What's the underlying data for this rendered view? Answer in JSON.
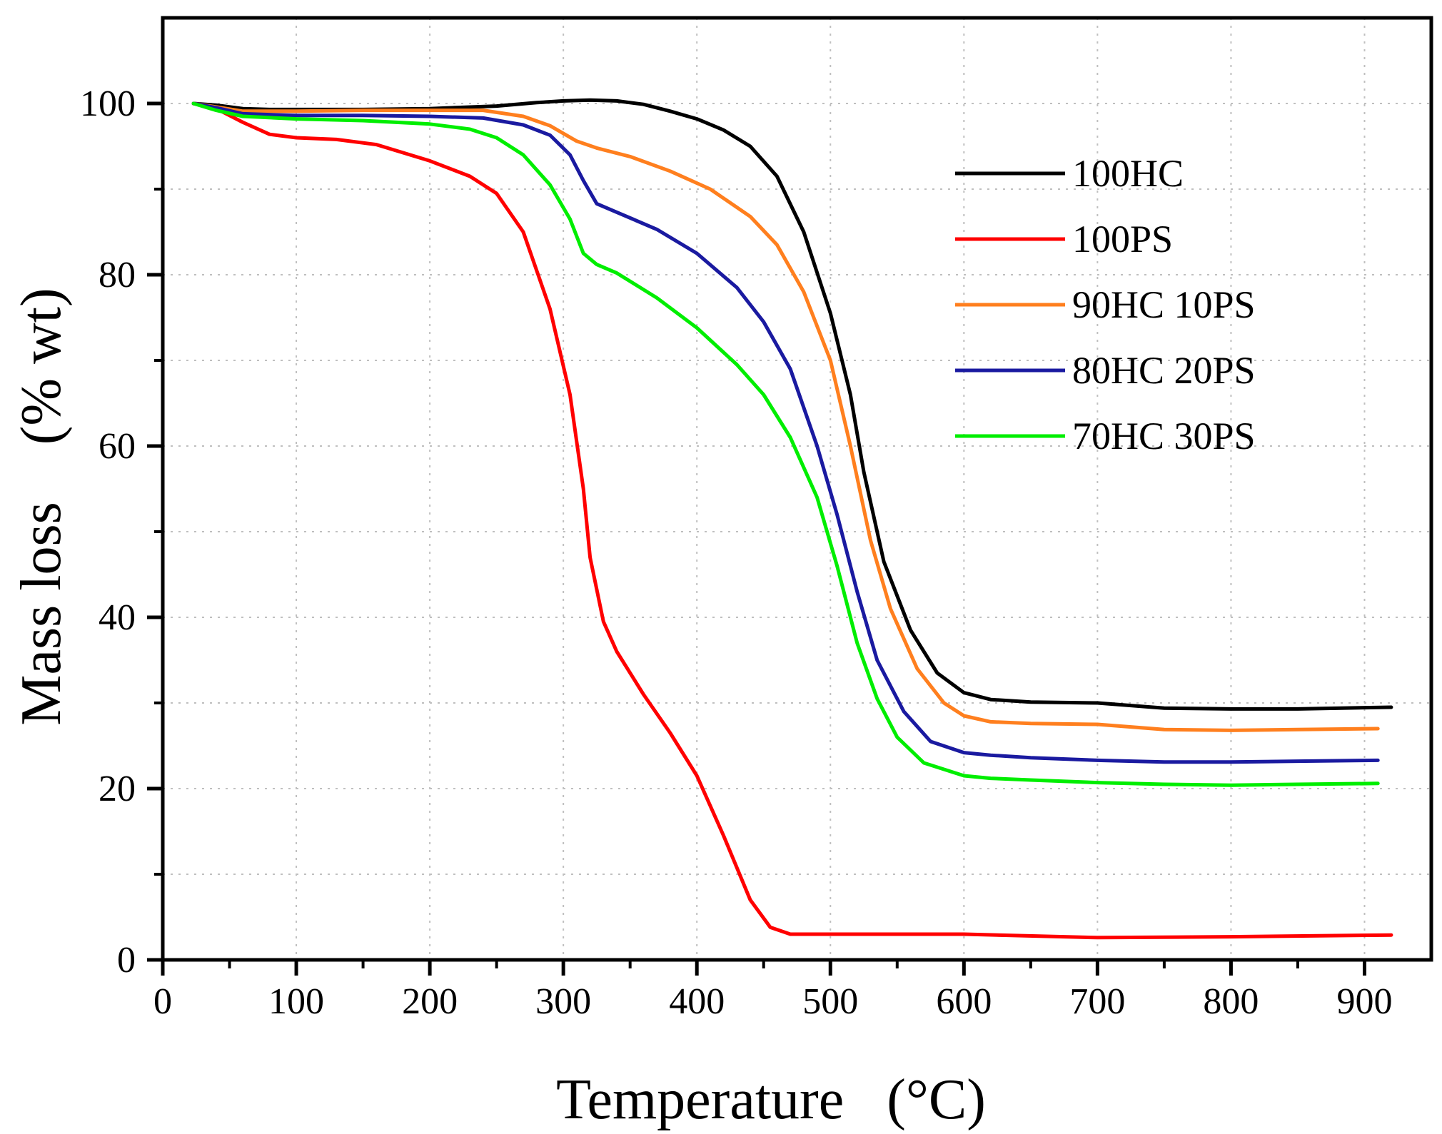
{
  "chart_data": {
    "type": "line",
    "title": "",
    "xlabel": "Temperature   (°C)",
    "ylabel": "Mass loss    (% wt)",
    "xlim": [
      0,
      950
    ],
    "ylim": [
      0,
      110
    ],
    "xticks": [
      0,
      100,
      200,
      300,
      400,
      500,
      600,
      700,
      800,
      900
    ],
    "yticks": [
      0,
      20,
      40,
      60,
      80,
      100
    ],
    "grid": true,
    "legend_position": "top-right",
    "series": [
      {
        "name": "100HC",
        "color": "#000000",
        "points": [
          [
            23,
            100
          ],
          [
            40,
            99.8
          ],
          [
            60,
            99.4
          ],
          [
            80,
            99.3
          ],
          [
            100,
            99.3
          ],
          [
            150,
            99.3
          ],
          [
            200,
            99.4
          ],
          [
            250,
            99.7
          ],
          [
            280,
            100.1
          ],
          [
            300,
            100.3
          ],
          [
            320,
            100.4
          ],
          [
            340,
            100.3
          ],
          [
            360,
            99.9
          ],
          [
            380,
            99.1
          ],
          [
            400,
            98.2
          ],
          [
            420,
            96.9
          ],
          [
            440,
            95
          ],
          [
            460,
            91.5
          ],
          [
            480,
            85
          ],
          [
            500,
            75.5
          ],
          [
            515,
            66
          ],
          [
            525,
            57
          ],
          [
            540,
            46.5
          ],
          [
            560,
            38.5
          ],
          [
            580,
            33.5
          ],
          [
            600,
            31.2
          ],
          [
            620,
            30.4
          ],
          [
            650,
            30.1
          ],
          [
            700,
            30
          ],
          [
            750,
            29.4
          ],
          [
            800,
            29.3
          ],
          [
            850,
            29.3
          ],
          [
            920,
            29.5
          ]
        ]
      },
      {
        "name": "100PS",
        "color": "#ff0000",
        "points": [
          [
            23,
            100
          ],
          [
            40,
            99.4
          ],
          [
            60,
            97.8
          ],
          [
            80,
            96.4
          ],
          [
            100,
            96
          ],
          [
            130,
            95.8
          ],
          [
            160,
            95.2
          ],
          [
            200,
            93.3
          ],
          [
            230,
            91.5
          ],
          [
            250,
            89.5
          ],
          [
            270,
            85
          ],
          [
            290,
            76
          ],
          [
            305,
            66
          ],
          [
            315,
            55
          ],
          [
            320,
            47
          ],
          [
            330,
            39.5
          ],
          [
            340,
            36
          ],
          [
            360,
            31
          ],
          [
            380,
            26.5
          ],
          [
            400,
            21.5
          ],
          [
            420,
            14.5
          ],
          [
            440,
            7
          ],
          [
            455,
            3.8
          ],
          [
            470,
            3
          ],
          [
            500,
            3
          ],
          [
            550,
            3
          ],
          [
            600,
            3
          ],
          [
            700,
            2.6
          ],
          [
            800,
            2.7
          ],
          [
            920,
            2.9
          ]
        ]
      },
      {
        "name": "90HC 10PS",
        "color": "#ff7f1e",
        "points": [
          [
            23,
            100
          ],
          [
            40,
            99.6
          ],
          [
            60,
            99.1
          ],
          [
            100,
            99.1
          ],
          [
            150,
            99.2
          ],
          [
            200,
            99.2
          ],
          [
            240,
            99.2
          ],
          [
            270,
            98.5
          ],
          [
            290,
            97.4
          ],
          [
            310,
            95.6
          ],
          [
            325,
            94.8
          ],
          [
            350,
            93.8
          ],
          [
            380,
            92.1
          ],
          [
            410,
            90
          ],
          [
            440,
            86.8
          ],
          [
            460,
            83.5
          ],
          [
            480,
            78
          ],
          [
            500,
            70
          ],
          [
            515,
            60
          ],
          [
            530,
            49
          ],
          [
            545,
            41
          ],
          [
            565,
            34
          ],
          [
            585,
            30
          ],
          [
            600,
            28.5
          ],
          [
            620,
            27.8
          ],
          [
            650,
            27.6
          ],
          [
            700,
            27.5
          ],
          [
            750,
            26.9
          ],
          [
            800,
            26.8
          ],
          [
            850,
            26.9
          ],
          [
            910,
            27
          ]
        ]
      },
      {
        "name": "80HC 20PS",
        "color": "#1a1aa0",
        "points": [
          [
            23,
            100
          ],
          [
            40,
            99.5
          ],
          [
            60,
            98.8
          ],
          [
            100,
            98.6
          ],
          [
            150,
            98.6
          ],
          [
            200,
            98.5
          ],
          [
            240,
            98.3
          ],
          [
            270,
            97.5
          ],
          [
            290,
            96.3
          ],
          [
            305,
            94
          ],
          [
            315,
            91
          ],
          [
            325,
            88.3
          ],
          [
            340,
            87.3
          ],
          [
            370,
            85.3
          ],
          [
            400,
            82.5
          ],
          [
            430,
            78.5
          ],
          [
            450,
            74.5
          ],
          [
            470,
            69
          ],
          [
            490,
            60
          ],
          [
            505,
            52
          ],
          [
            520,
            43
          ],
          [
            535,
            35
          ],
          [
            555,
            29
          ],
          [
            575,
            25.5
          ],
          [
            600,
            24.2
          ],
          [
            620,
            23.9
          ],
          [
            650,
            23.6
          ],
          [
            700,
            23.3
          ],
          [
            750,
            23.1
          ],
          [
            800,
            23.1
          ],
          [
            850,
            23.2
          ],
          [
            910,
            23.3
          ]
        ]
      },
      {
        "name": "70HC 30PS",
        "color": "#00ee00",
        "points": [
          [
            23,
            100
          ],
          [
            40,
            99.2
          ],
          [
            60,
            98.5
          ],
          [
            100,
            98.2
          ],
          [
            150,
            98
          ],
          [
            200,
            97.6
          ],
          [
            230,
            97
          ],
          [
            250,
            96
          ],
          [
            270,
            94
          ],
          [
            290,
            90.5
          ],
          [
            305,
            86.5
          ],
          [
            315,
            82.5
          ],
          [
            325,
            81.2
          ],
          [
            340,
            80.2
          ],
          [
            370,
            77.3
          ],
          [
            400,
            73.8
          ],
          [
            430,
            69.5
          ],
          [
            450,
            66
          ],
          [
            470,
            61
          ],
          [
            490,
            54
          ],
          [
            505,
            46
          ],
          [
            520,
            37
          ],
          [
            535,
            30.5
          ],
          [
            550,
            26
          ],
          [
            570,
            23
          ],
          [
            600,
            21.5
          ],
          [
            620,
            21.2
          ],
          [
            650,
            21
          ],
          [
            700,
            20.7
          ],
          [
            750,
            20.5
          ],
          [
            800,
            20.4
          ],
          [
            850,
            20.5
          ],
          [
            910,
            20.6
          ]
        ]
      }
    ]
  }
}
